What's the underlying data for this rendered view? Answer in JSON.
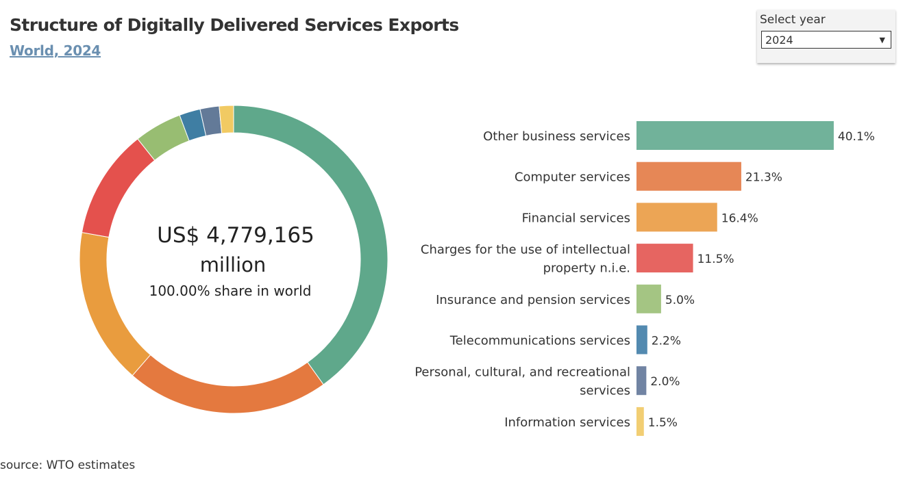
{
  "title": "Structure of Digitally Delivered Services Exports",
  "subtitle": "World,  2024",
  "filter": {
    "label": "Select year",
    "value": "2024"
  },
  "source": "source: WTO estimates",
  "center": {
    "line1": "US$ 4,779,165",
    "line2": "million",
    "line3": "100.00% share in world"
  },
  "chart_data": {
    "type": "bar",
    "title": "Structure of Digitally Delivered Services Exports",
    "categories": [
      "Other business services",
      "Computer services",
      "Financial services",
      "Charges for the use of intellectual property n.i.e.",
      "Insurance and pension services",
      "Telecommunications services",
      "Personal, cultural, and recreational services",
      "Information services"
    ],
    "label_lines": [
      [
        "Other business services"
      ],
      [
        "Computer services"
      ],
      [
        "Financial services"
      ],
      [
        "Charges for the use of intellectual",
        "property n.i.e."
      ],
      [
        "Insurance and pension services"
      ],
      [
        "Telecommunications services"
      ],
      [
        "Personal, cultural, and recreational",
        "services"
      ],
      [
        "Information services"
      ]
    ],
    "values": [
      40.1,
      21.3,
      16.4,
      11.5,
      5.0,
      2.2,
      2.0,
      1.5
    ],
    "value_labels": [
      "40.1%",
      "21.3%",
      "16.4%",
      "11.5%",
      "5.0%",
      "2.2%",
      "2.0%",
      "1.5%"
    ],
    "unit": "%",
    "donut_colors": [
      "#5fa88b",
      "#e4793f",
      "#e99c3e",
      "#e4514d",
      "#98bd72",
      "#3f7ea3",
      "#637a98",
      "#f1ca63"
    ],
    "bar_colors": [
      "#71b29a",
      "#e68756",
      "#eca555",
      "#e66561",
      "#a4c583",
      "#538ab0",
      "#7184a3",
      "#f2ce73"
    ]
  }
}
